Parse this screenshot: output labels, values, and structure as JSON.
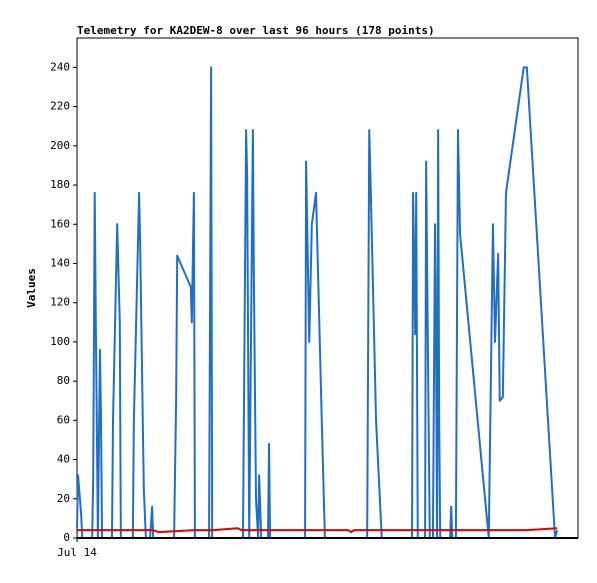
{
  "chart_data": {
    "type": "line",
    "title": "Telemetry for KA2DEW-8 over last 96 hours (178 points)",
    "y_label": "Values",
    "xlim": [
      0,
      96
    ],
    "xticks": [
      {
        "value": 0,
        "label": "Jul 14"
      }
    ],
    "ylim": [
      0,
      255
    ],
    "yticks": [
      0,
      20,
      40,
      60,
      80,
      100,
      120,
      140,
      160,
      180,
      200,
      220,
      240
    ],
    "series": [
      {
        "color": "#1f6fc5",
        "x": [
          0.0,
          0.2,
          0.8,
          1.0,
          2.9,
          3.1,
          3.4,
          3.6,
          3.8,
          4.0,
          4.4,
          4.6,
          4.8,
          6.7,
          6.9,
          7.7,
          7.9,
          8.2,
          8.4,
          10.7,
          10.9,
          11.9,
          12.1,
          12.8,
          13.2,
          14.0,
          14.4,
          14.6,
          18.6,
          19.0,
          19.2,
          21.8,
          22.0,
          22.4,
          22.6,
          25.3,
          25.7,
          25.9,
          31.8,
          32.4,
          32.6,
          33.0,
          33.7,
          33.9,
          34.3,
          34.7,
          34.9,
          35.3,
          36.6,
          36.8,
          37.0,
          43.7,
          43.9,
          44.5,
          45.0,
          45.8,
          46.9,
          47.5,
          55.6,
          56.0,
          56.3,
          57.3,
          58.4,
          64.2,
          64.4,
          64.8,
          65.0,
          65.3,
          66.7,
          66.9,
          67.3,
          67.6,
          68.2,
          68.6,
          68.8,
          69.0,
          69.2,
          69.4,
          69.6,
          71.5,
          71.7,
          71.9,
          72.6,
          73.0,
          73.4,
          78.9,
          79.7,
          80.1,
          80.7,
          81.0,
          81.6,
          82.2,
          85.6,
          86.2,
          91.6,
          92.0
        ],
        "values": [
          5,
          32,
          12,
          0,
          0,
          30,
          176,
          110,
          60,
          0,
          96,
          60,
          0,
          0,
          60,
          160,
          140,
          110,
          0,
          0,
          60,
          176,
          150,
          25,
          0,
          0,
          16,
          0,
          0,
          72,
          144,
          128,
          110,
          176,
          0,
          0,
          240,
          0,
          0,
          208,
          185,
          0,
          208,
          130,
          20,
          0,
          32,
          0,
          0,
          48,
          0,
          0,
          192,
          100,
          160,
          176,
          60,
          0,
          0,
          208,
          176,
          60,
          0,
          0,
          176,
          104,
          176,
          0,
          0,
          192,
          80,
          0,
          0,
          160,
          100,
          0,
          208,
          60,
          0,
          0,
          16,
          0,
          0,
          208,
          155,
          0,
          160,
          100,
          145,
          70,
          72,
          176,
          240,
          240,
          0,
          4
        ]
      },
      {
        "color": "#e00000",
        "x": [
          0.0,
          14.6,
          15.6,
          22.6,
          26.2,
          30.7,
          31.6,
          52.0,
          52.5,
          53.1,
          86.2,
          92.0
        ],
        "values": [
          4,
          4,
          3,
          4,
          4,
          5,
          4,
          4,
          3,
          4,
          4,
          5
        ]
      }
    ]
  }
}
